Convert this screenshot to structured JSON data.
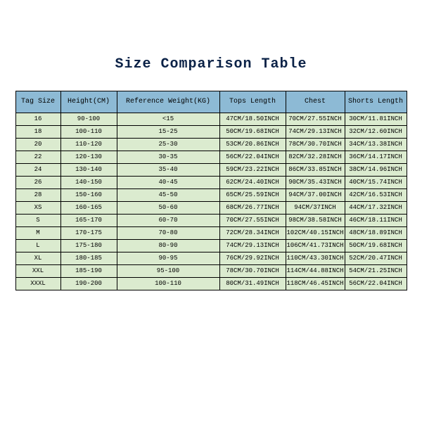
{
  "title": "Size Comparison Table",
  "table": {
    "type": "table",
    "header_bg": "#8dbad5",
    "row_bg": "#dbebcf",
    "border_color": "#000000",
    "title_color": "#0b2247",
    "columns": [
      "Tag Size",
      "Height(CM)",
      "Reference Weight(KG)",
      "Tops Length",
      "Chest",
      "Shorts Length"
    ],
    "rows": [
      [
        "16",
        "90-100",
        "<15",
        "47CM/18.50INCH",
        "70CM/27.55INCH",
        "30CM/11.81INCH"
      ],
      [
        "18",
        "100-110",
        "15-25",
        "50CM/19.68INCH",
        "74CM/29.13INCH",
        "32CM/12.60INCH"
      ],
      [
        "20",
        "110-120",
        "25-30",
        "53CM/20.86INCH",
        "78CM/30.70INCH",
        "34CM/13.38INCH"
      ],
      [
        "22",
        "120-130",
        "30-35",
        "56CM/22.04INCH",
        "82CM/32.28INCH",
        "36CM/14.17INCH"
      ],
      [
        "24",
        "130-140",
        "35-40",
        "59CM/23.22INCH",
        "86CM/33.85INCH",
        "38CM/14.96INCH"
      ],
      [
        "26",
        "140-150",
        "40-45",
        "62CM/24.40INCH",
        "90CM/35.43INCH",
        "40CM/15.74INCH"
      ],
      [
        "28",
        "150-160",
        "45-50",
        "65CM/25.59INCH",
        "94CM/37.00INCH",
        "42CM/16.53INCH"
      ],
      [
        "XS",
        "160-165",
        "50-60",
        "68CM/26.77INCH",
        "94CM/37INCH",
        "44CM/17.32INCH"
      ],
      [
        "S",
        "165-170",
        "60-70",
        "70CM/27.55INCH",
        "98CM/38.58INCH",
        "46CM/18.11INCH"
      ],
      [
        "M",
        "170-175",
        "70-80",
        "72CM/28.34INCH",
        "102CM/40.15INCH",
        "48CM/18.89INCH"
      ],
      [
        "L",
        "175-180",
        "80-90",
        "74CM/29.13INCH",
        "106CM/41.73INCH",
        "50CM/19.68INCH"
      ],
      [
        "XL",
        "180-185",
        "90-95",
        "76CM/29.92INCH",
        "110CM/43.30INCH",
        "52CM/20.47INCH"
      ],
      [
        "XXL",
        "185-190",
        "95-100",
        "78CM/30.70INCH",
        "114CM/44.88INCH",
        "54CM/21.25INCH"
      ],
      [
        "XXXL",
        "190-200",
        "100-110",
        "80CM/31.49INCH",
        "118CM/46.45INCH",
        "56CM/22.04INCH"
      ]
    ]
  }
}
